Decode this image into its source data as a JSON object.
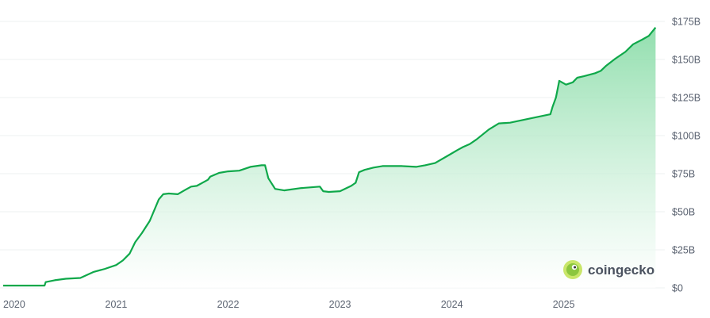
{
  "watermark": {
    "text": "coingecko",
    "icon": "gecko-logo-icon"
  },
  "colors": {
    "line": "#0fa84a",
    "fill_top": "#7fd9a0",
    "fill_bottom": "#ffffff",
    "grid": "#eef0f2",
    "axis_text": "#5a6270",
    "logo": "#c9e66a"
  },
  "chart_data": {
    "type": "area",
    "title": "",
    "xlabel": "",
    "ylabel": "",
    "grid": true,
    "y_axis_side": "right",
    "y_ticks": [
      0,
      25,
      50,
      75,
      100,
      125,
      150,
      175
    ],
    "y_tick_labels": [
      "$0",
      "$25B",
      "$50B",
      "$75B",
      "$100B",
      "$125B",
      "$150B",
      "$175B"
    ],
    "ylim": [
      0,
      175
    ],
    "x_ticks": [
      2020,
      2021,
      2022,
      2023,
      2024,
      2025
    ],
    "x_tick_labels": [
      "2020",
      "2021",
      "2022",
      "2023",
      "2024",
      "2025"
    ],
    "xlim": [
      2019.99,
      2025.86
    ],
    "series": [
      {
        "name": "",
        "x": [
          2019.99,
          2020.2,
          2020.36,
          2020.37,
          2020.45,
          2020.55,
          2020.68,
          2020.8,
          2020.9,
          2021.0,
          2021.06,
          2021.12,
          2021.17,
          2021.23,
          2021.3,
          2021.38,
          2021.42,
          2021.47,
          2021.55,
          2021.62,
          2021.67,
          2021.72,
          2021.82,
          2021.84,
          2021.92,
          2022.0,
          2022.1,
          2022.2,
          2022.25,
          2022.3,
          2022.33,
          2022.36,
          2022.42,
          2022.5,
          2022.65,
          2022.82,
          2022.85,
          2022.9,
          2023.0,
          2023.1,
          2023.14,
          2023.17,
          2023.22,
          2023.3,
          2023.38,
          2023.45,
          2023.55,
          2023.68,
          2023.76,
          2023.85,
          2023.98,
          2024.05,
          2024.1,
          2024.16,
          2024.22,
          2024.33,
          2024.42,
          2024.52,
          2024.68,
          2024.88,
          2024.9,
          2024.93,
          2024.96,
          2025.02,
          2025.08,
          2025.12,
          2025.18,
          2025.28,
          2025.33,
          2025.38,
          2025.46,
          2025.55,
          2025.62,
          2025.7,
          2025.76,
          2025.82
        ],
        "values": [
          1.5,
          1.5,
          1.5,
          3.8,
          5.0,
          6.0,
          6.5,
          10.5,
          12.5,
          15.0,
          18.0,
          22.5,
          30.0,
          36.0,
          44.0,
          58.0,
          61.5,
          62.0,
          61.5,
          64.5,
          66.5,
          67.0,
          71.0,
          73.0,
          75.5,
          76.5,
          77.0,
          79.5,
          80.0,
          80.5,
          80.5,
          72.0,
          65.0,
          64.0,
          65.5,
          66.5,
          63.5,
          63.0,
          63.5,
          67.0,
          69.0,
          76.0,
          77.5,
          79.0,
          80.0,
          80.0,
          80.0,
          79.5,
          80.5,
          82.0,
          87.5,
          90.5,
          92.5,
          94.5,
          97.5,
          104.0,
          108.0,
          108.5,
          111.0,
          114.0,
          119.0,
          125.0,
          136.0,
          133.5,
          135.0,
          138.0,
          139.0,
          141.0,
          142.5,
          146.0,
          150.5,
          155.0,
          160.0,
          163.0,
          165.5,
          171.0
        ]
      }
    ]
  }
}
